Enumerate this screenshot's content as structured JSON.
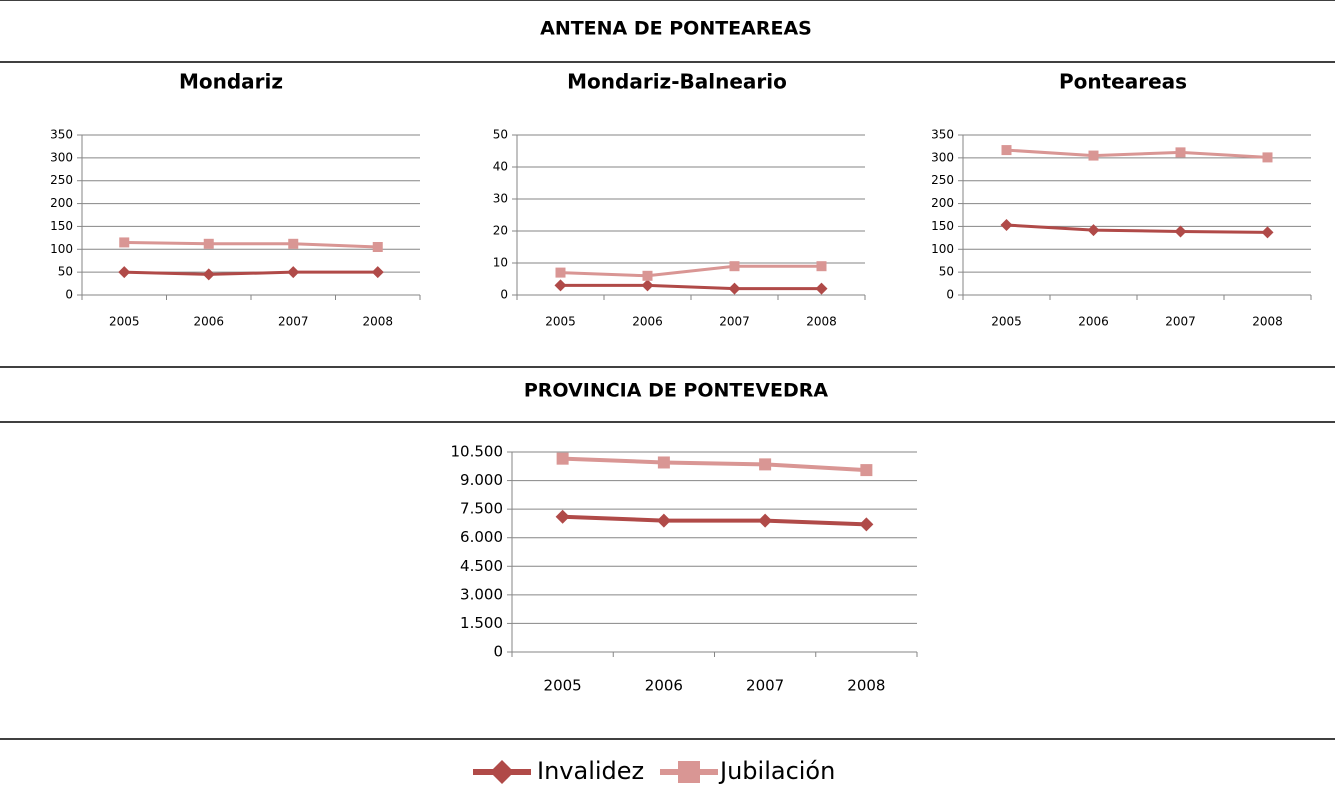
{
  "headings": [
    "ANTENA DE PONTEAREAS",
    "PROVINCIA DE PONTEVEDRA"
  ],
  "chart_data": [
    {
      "type": "line",
      "title": "Mondariz",
      "categories": [
        "2005",
        "2006",
        "2007",
        "2008"
      ],
      "series": [
        {
          "name": "Invalidez",
          "color": "#b04a48",
          "values": [
            50,
            45,
            50,
            50
          ]
        },
        {
          "name": "Jubilación",
          "color": "#d99694",
          "values": [
            115,
            112,
            112,
            105
          ]
        }
      ],
      "ylim": [
        0,
        350
      ],
      "yticks": [
        0,
        50,
        100,
        150,
        200,
        250,
        300,
        350
      ],
      "grid": true
    },
    {
      "type": "line",
      "title": "Mondariz-Balneario",
      "categories": [
        "2005",
        "2006",
        "2007",
        "2008"
      ],
      "series": [
        {
          "name": "Invalidez",
          "color": "#b04a48",
          "values": [
            3,
            3,
            2,
            2
          ]
        },
        {
          "name": "Jubilación",
          "color": "#d99694",
          "values": [
            7,
            6,
            9,
            9
          ]
        }
      ],
      "ylim": [
        0,
        50
      ],
      "yticks": [
        0,
        10,
        20,
        30,
        40,
        50
      ],
      "grid": true
    },
    {
      "type": "line",
      "title": "Ponteareas",
      "categories": [
        "2005",
        "2006",
        "2007",
        "2008"
      ],
      "series": [
        {
          "name": "Invalidez",
          "color": "#b04a48",
          "values": [
            153,
            142,
            139,
            137
          ]
        },
        {
          "name": "Jubilación",
          "color": "#d99694",
          "values": [
            317,
            305,
            312,
            301
          ]
        }
      ],
      "ylim": [
        0,
        350
      ],
      "yticks": [
        0,
        50,
        100,
        150,
        200,
        250,
        300,
        350
      ],
      "grid": true
    },
    {
      "type": "line",
      "categories": [
        "2005",
        "2006",
        "2007",
        "2008"
      ],
      "series": [
        {
          "name": "Invalidez",
          "color": "#b04a48",
          "values": [
            7100,
            6900,
            6900,
            6700
          ]
        },
        {
          "name": "Jubilación",
          "color": "#d99694",
          "values": [
            10150,
            9950,
            9850,
            9550
          ]
        }
      ],
      "ylim": [
        0,
        10500
      ],
      "yticks": [
        0,
        {
          "value": 1500,
          "label": "1.500"
        },
        {
          "value": 3000,
          "label": "3.000"
        },
        {
          "value": 4500,
          "label": "4.500"
        },
        {
          "value": 6000,
          "label": "6.000"
        },
        {
          "value": 7500,
          "label": "7.500"
        },
        {
          "value": 9000,
          "label": "9.000"
        },
        {
          "value": 10500,
          "label": "10.500"
        }
      ],
      "grid": true,
      "legend": "bottom"
    }
  ]
}
